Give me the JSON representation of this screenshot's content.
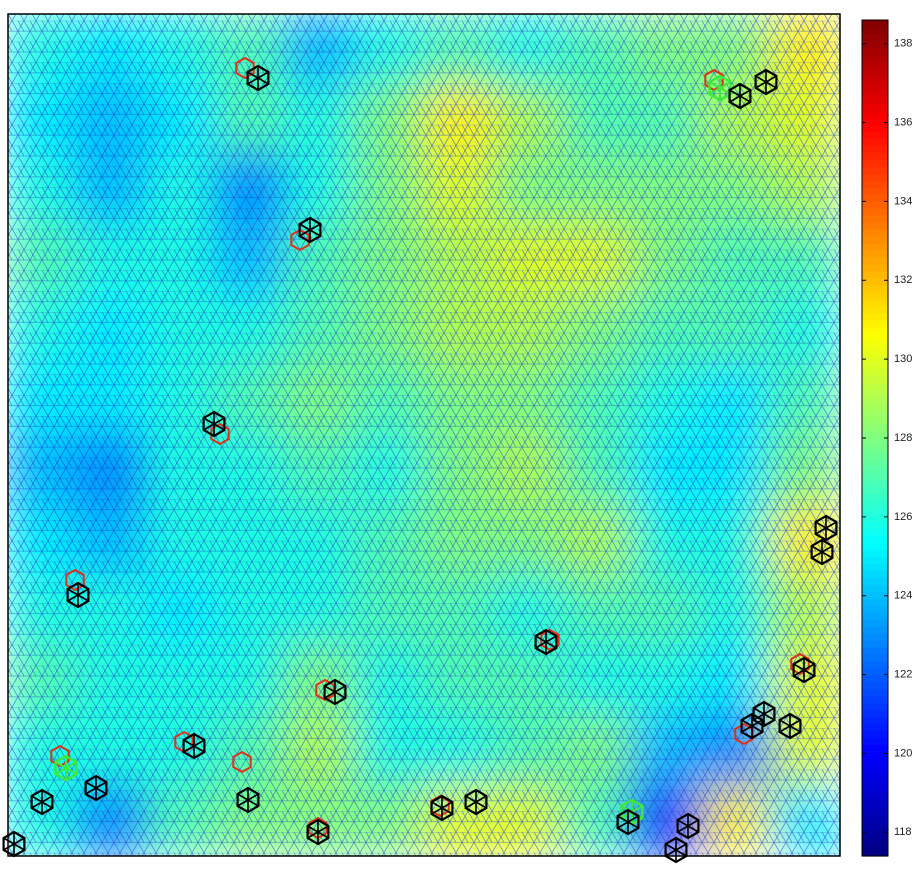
{
  "chart_data": {
    "type": "heatmap",
    "colormap": "jet",
    "clim": [
      117.4,
      138.6
    ],
    "colorbar_ticks": [
      118,
      120,
      122,
      124,
      126,
      128,
      130,
      132,
      134,
      136,
      138
    ],
    "values": [
      [
        126,
        125,
        126,
        127,
        124,
        126,
        127,
        126,
        127,
        128,
        128,
        131
      ],
      [
        125,
        124,
        125,
        127,
        126,
        128,
        131,
        129,
        127,
        127,
        129,
        130
      ],
      [
        126,
        124,
        126,
        123,
        126,
        128,
        130,
        128,
        128,
        128,
        128,
        129
      ],
      [
        127,
        126,
        126,
        124,
        127,
        128,
        129,
        130,
        130,
        128,
        127,
        127
      ],
      [
        126,
        125,
        126,
        126,
        127,
        128,
        129,
        129,
        128,
        127,
        127,
        126
      ],
      [
        125,
        125,
        126,
        127,
        128,
        127,
        128,
        128,
        127,
        126,
        125,
        127
      ],
      [
        124,
        123,
        126,
        126,
        127,
        126,
        128,
        129,
        127,
        125,
        125,
        128
      ],
      [
        125,
        124,
        126,
        126,
        126,
        127,
        128,
        128,
        129,
        126,
        126,
        131
      ],
      [
        126,
        126,
        125,
        126,
        126,
        127,
        127,
        126,
        127,
        127,
        126,
        129
      ],
      [
        127,
        126,
        126,
        126,
        128,
        126,
        127,
        127,
        126,
        126,
        125,
        130
      ],
      [
        126,
        126,
        126,
        127,
        129,
        126,
        126,
        127,
        128,
        124,
        123,
        130
      ],
      [
        126,
        123,
        127,
        128,
        128,
        128,
        130,
        130,
        127,
        121,
        131,
        125
      ]
    ]
  }
}
